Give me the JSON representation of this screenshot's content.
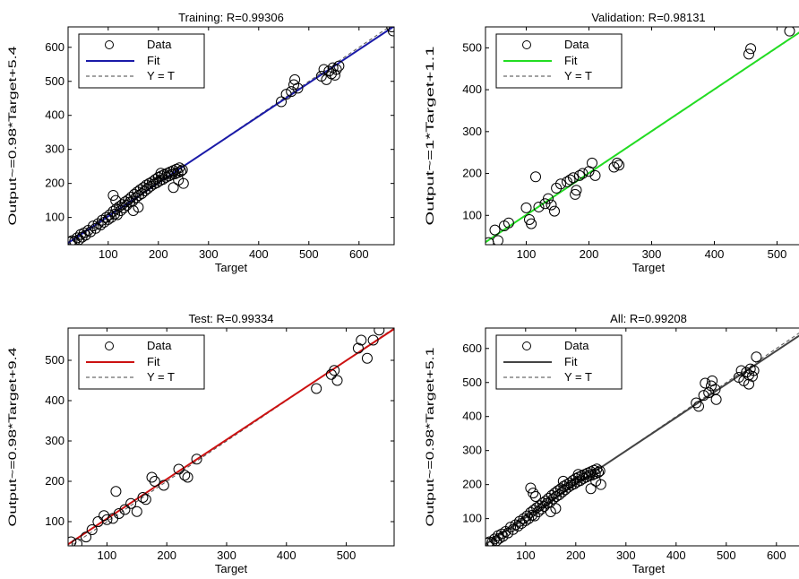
{
  "chart_data": [
    {
      "type": "scatter",
      "title": "Training: R=0.99306",
      "xlabel": "Target",
      "ylabel": "Output~=0.98*Target+5.4",
      "xlim": [
        20,
        670
      ],
      "ylim": [
        20,
        660
      ],
      "xticks": [
        100,
        200,
        300,
        400,
        500,
        600
      ],
      "yticks": [
        100,
        200,
        300,
        400,
        500,
        600
      ],
      "fit": {
        "slope": 0.98,
        "intercept": 5.4,
        "color": "#1a1aa8"
      },
      "legend": {
        "placement": "top-left",
        "entries": [
          "Data",
          "Fit",
          "Y = T"
        ]
      },
      "points": [
        [
          25,
          28
        ],
        [
          28,
          32
        ],
        [
          33,
          30
        ],
        [
          38,
          40
        ],
        [
          42,
          35
        ],
        [
          45,
          50
        ],
        [
          48,
          42
        ],
        [
          52,
          55
        ],
        [
          55,
          48
        ],
        [
          60,
          62
        ],
        [
          65,
          58
        ],
        [
          70,
          75
        ],
        [
          75,
          68
        ],
        [
          80,
          82
        ],
        [
          85,
          78
        ],
        [
          88,
          92
        ],
        [
          92,
          86
        ],
        [
          96,
          100
        ],
        [
          100,
          94
        ],
        [
          103,
          108
        ],
        [
          106,
          100
        ],
        [
          110,
          118
        ],
        [
          113,
          110
        ],
        [
          116,
          125
        ],
        [
          118,
          108
        ],
        [
          122,
          132
        ],
        [
          125,
          120
        ],
        [
          128,
          138
        ],
        [
          131,
          128
        ],
        [
          134,
          146
        ],
        [
          137,
          136
        ],
        [
          140,
          152
        ],
        [
          143,
          145
        ],
        [
          146,
          160
        ],
        [
          149,
          148
        ],
        [
          152,
          168
        ],
        [
          155,
          158
        ],
        [
          158,
          175
        ],
        [
          161,
          165
        ],
        [
          164,
          182
        ],
        [
          167,
          170
        ],
        [
          170,
          188
        ],
        [
          173,
          178
        ],
        [
          176,
          195
        ],
        [
          179,
          185
        ],
        [
          182,
          200
        ],
        [
          185,
          192
        ],
        [
          188,
          205
        ],
        [
          191,
          198
        ],
        [
          194,
          212
        ],
        [
          197,
          202
        ],
        [
          200,
          218
        ],
        [
          203,
          208
        ],
        [
          206,
          222
        ],
        [
          209,
          212
        ],
        [
          212,
          226
        ],
        [
          215,
          218
        ],
        [
          218,
          230
        ],
        [
          221,
          222
        ],
        [
          224,
          234
        ],
        [
          227,
          226
        ],
        [
          230,
          238
        ],
        [
          233,
          228
        ],
        [
          236,
          242
        ],
        [
          239,
          232
        ],
        [
          242,
          246
        ],
        [
          245,
          236
        ],
        [
          248,
          240
        ],
        [
          110,
          165
        ],
        [
          115,
          150
        ],
        [
          205,
          230
        ],
        [
          230,
          188
        ],
        [
          240,
          210
        ],
        [
          250,
          200
        ],
        [
          150,
          120
        ],
        [
          160,
          130
        ],
        [
          445,
          440
        ],
        [
          455,
          462
        ],
        [
          465,
          470
        ],
        [
          470,
          490
        ],
        [
          472,
          505
        ],
        [
          478,
          480
        ],
        [
          525,
          515
        ],
        [
          530,
          535
        ],
        [
          535,
          505
        ],
        [
          540,
          530
        ],
        [
          545,
          522
        ],
        [
          548,
          540
        ],
        [
          552,
          518
        ],
        [
          555,
          535
        ],
        [
          560,
          545
        ],
        [
          665,
          660
        ],
        [
          668,
          648
        ]
      ]
    },
    {
      "type": "scatter",
      "title": "Validation: R=0.98131",
      "xlabel": "Target",
      "ylabel": "Output~=1*Target+1.1",
      "xlim": [
        35,
        555
      ],
      "ylim": [
        30,
        550
      ],
      "xticks": [
        100,
        200,
        300,
        400,
        500
      ],
      "yticks": [
        100,
        200,
        300,
        400,
        500
      ],
      "fit": {
        "slope": 1.0,
        "intercept": 1.1,
        "color": "#22dd22"
      },
      "legend": {
        "placement": "top-left",
        "entries": [
          "Data",
          "Fit",
          "Y = T"
        ]
      },
      "points": [
        [
          40,
          35
        ],
        [
          50,
          65
        ],
        [
          55,
          40
        ],
        [
          65,
          75
        ],
        [
          72,
          82
        ],
        [
          100,
          118
        ],
        [
          105,
          90
        ],
        [
          108,
          80
        ],
        [
          115,
          192
        ],
        [
          120,
          120
        ],
        [
          130,
          128
        ],
        [
          135,
          140
        ],
        [
          140,
          125
        ],
        [
          145,
          110
        ],
        [
          148,
          165
        ],
        [
          155,
          175
        ],
        [
          165,
          180
        ],
        [
          170,
          185
        ],
        [
          175,
          190
        ],
        [
          178,
          150
        ],
        [
          180,
          160
        ],
        [
          185,
          195
        ],
        [
          190,
          200
        ],
        [
          200,
          205
        ],
        [
          205,
          225
        ],
        [
          210,
          195
        ],
        [
          240,
          215
        ],
        [
          245,
          225
        ],
        [
          248,
          220
        ],
        [
          455,
          485
        ],
        [
          458,
          498
        ],
        [
          520,
          540
        ],
        [
          545,
          495
        ]
      ]
    },
    {
      "type": "scatter",
      "title": "Test: R=0.99334",
      "xlabel": "Target",
      "ylabel": "Output~=0.98*Target+9.4",
      "xlim": [
        35,
        580
      ],
      "ylim": [
        40,
        580
      ],
      "xticks": [
        100,
        200,
        300,
        400,
        500
      ],
      "yticks": [
        100,
        200,
        300,
        400,
        500
      ],
      "fit": {
        "slope": 0.98,
        "intercept": 9.4,
        "color": "#cc1111"
      },
      "legend": {
        "placement": "top-left",
        "entries": [
          "Data",
          "Fit",
          "Y = T"
        ]
      },
      "points": [
        [
          40,
          50
        ],
        [
          50,
          45
        ],
        [
          65,
          62
        ],
        [
          75,
          80
        ],
        [
          85,
          100
        ],
        [
          95,
          115
        ],
        [
          100,
          105
        ],
        [
          110,
          108
        ],
        [
          115,
          175
        ],
        [
          120,
          120
        ],
        [
          130,
          130
        ],
        [
          140,
          145
        ],
        [
          150,
          125
        ],
        [
          160,
          160
        ],
        [
          165,
          155
        ],
        [
          175,
          210
        ],
        [
          180,
          200
        ],
        [
          195,
          190
        ],
        [
          220,
          230
        ],
        [
          230,
          215
        ],
        [
          235,
          210
        ],
        [
          250,
          255
        ],
        [
          450,
          430
        ],
        [
          475,
          465
        ],
        [
          480,
          475
        ],
        [
          485,
          450
        ],
        [
          520,
          530
        ],
        [
          525,
          550
        ],
        [
          535,
          505
        ],
        [
          545,
          550
        ],
        [
          555,
          575
        ]
      ]
    },
    {
      "type": "scatter",
      "title": "All: R=0.99208",
      "xlabel": "Target",
      "ylabel": "Output~=0.98*Target+5.1",
      "xlim": [
        20,
        670
      ],
      "ylim": [
        20,
        660
      ],
      "xticks": [
        100,
        200,
        300,
        400,
        500,
        600
      ],
      "yticks": [
        100,
        200,
        300,
        400,
        500,
        600
      ],
      "fit": {
        "slope": 0.98,
        "intercept": 5.1,
        "color": "#444444"
      },
      "legend": {
        "placement": "top-left",
        "entries": [
          "Data",
          "Fit",
          "Y = T"
        ]
      },
      "points": [
        [
          25,
          28
        ],
        [
          28,
          32
        ],
        [
          33,
          30
        ],
        [
          38,
          40
        ],
        [
          42,
          35
        ],
        [
          45,
          50
        ],
        [
          48,
          42
        ],
        [
          52,
          55
        ],
        [
          55,
          48
        ],
        [
          60,
          62
        ],
        [
          65,
          58
        ],
        [
          70,
          75
        ],
        [
          75,
          68
        ],
        [
          80,
          82
        ],
        [
          85,
          78
        ],
        [
          88,
          92
        ],
        [
          92,
          86
        ],
        [
          96,
          100
        ],
        [
          100,
          94
        ],
        [
          103,
          108
        ],
        [
          106,
          100
        ],
        [
          110,
          118
        ],
        [
          113,
          110
        ],
        [
          116,
          125
        ],
        [
          118,
          108
        ],
        [
          122,
          132
        ],
        [
          125,
          120
        ],
        [
          128,
          138
        ],
        [
          131,
          128
        ],
        [
          134,
          146
        ],
        [
          137,
          136
        ],
        [
          140,
          152
        ],
        [
          143,
          145
        ],
        [
          146,
          160
        ],
        [
          149,
          148
        ],
        [
          152,
          168
        ],
        [
          155,
          158
        ],
        [
          158,
          175
        ],
        [
          161,
          165
        ],
        [
          164,
          182
        ],
        [
          167,
          170
        ],
        [
          170,
          188
        ],
        [
          173,
          178
        ],
        [
          176,
          195
        ],
        [
          179,
          185
        ],
        [
          182,
          200
        ],
        [
          185,
          192
        ],
        [
          188,
          205
        ],
        [
          191,
          198
        ],
        [
          194,
          212
        ],
        [
          197,
          202
        ],
        [
          200,
          218
        ],
        [
          203,
          208
        ],
        [
          206,
          222
        ],
        [
          209,
          212
        ],
        [
          212,
          226
        ],
        [
          215,
          218
        ],
        [
          218,
          230
        ],
        [
          221,
          222
        ],
        [
          224,
          234
        ],
        [
          227,
          226
        ],
        [
          230,
          238
        ],
        [
          233,
          228
        ],
        [
          236,
          242
        ],
        [
          239,
          232
        ],
        [
          242,
          246
        ],
        [
          245,
          236
        ],
        [
          248,
          240
        ],
        [
          110,
          190
        ],
        [
          115,
          175
        ],
        [
          120,
          165
        ],
        [
          205,
          230
        ],
        [
          230,
          188
        ],
        [
          240,
          210
        ],
        [
          250,
          200
        ],
        [
          150,
          120
        ],
        [
          160,
          130
        ],
        [
          175,
          210
        ],
        [
          440,
          440
        ],
        [
          445,
          430
        ],
        [
          455,
          462
        ],
        [
          458,
          498
        ],
        [
          465,
          470
        ],
        [
          470,
          490
        ],
        [
          472,
          505
        ],
        [
          478,
          480
        ],
        [
          480,
          450
        ],
        [
          525,
          515
        ],
        [
          530,
          535
        ],
        [
          535,
          505
        ],
        [
          540,
          530
        ],
        [
          545,
          522
        ],
        [
          548,
          540
        ],
        [
          552,
          518
        ],
        [
          555,
          535
        ],
        [
          560,
          575
        ],
        [
          545,
          495
        ],
        [
          665,
          660
        ]
      ]
    }
  ]
}
